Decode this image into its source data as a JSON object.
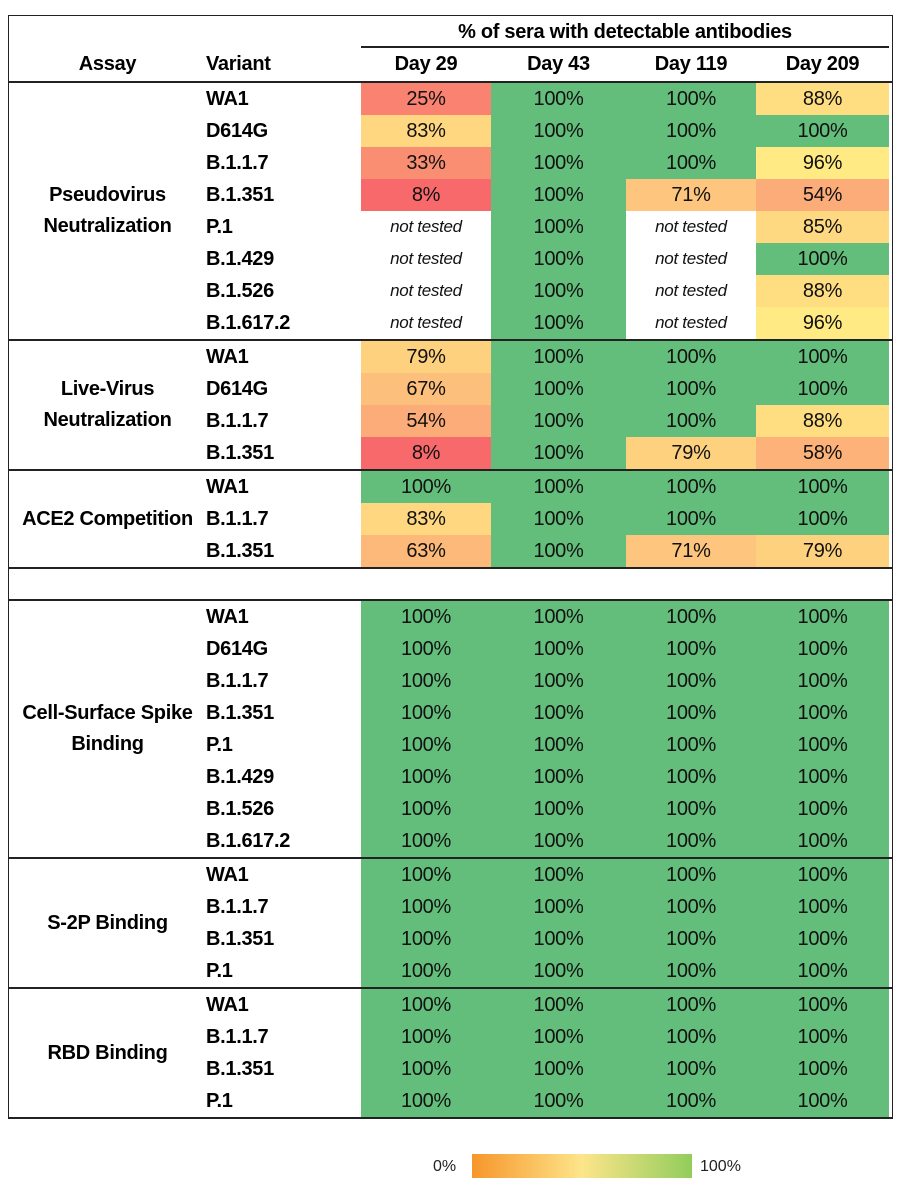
{
  "chart_data": {
    "type": "heatmap",
    "title": "% of sera with detectable antibodies",
    "columns": [
      "Assay",
      "Variant",
      "Day 29",
      "Day 43",
      "Day 119",
      "Day 209"
    ],
    "groups": [
      {
        "assay": "Pseudovirus Neutralization",
        "rows": [
          {
            "variant": "WA1",
            "values": [
              "25%",
              "100%",
              "100%",
              "88%"
            ]
          },
          {
            "variant": "D614G",
            "values": [
              "83%",
              "100%",
              "100%",
              "100%"
            ]
          },
          {
            "variant": "B.1.1.7",
            "values": [
              "33%",
              "100%",
              "100%",
              "96%"
            ]
          },
          {
            "variant": "B.1.351",
            "values": [
              "8%",
              "100%",
              "71%",
              "54%"
            ]
          },
          {
            "variant": "P.1",
            "values": [
              "not tested",
              "100%",
              "not tested",
              "85%"
            ]
          },
          {
            "variant": "B.1.429",
            "values": [
              "not tested",
              "100%",
              "not tested",
              "100%"
            ]
          },
          {
            "variant": "B.1.526",
            "values": [
              "not tested",
              "100%",
              "not tested",
              "88%"
            ]
          },
          {
            "variant": "B.1.617.2",
            "values": [
              "not tested",
              "100%",
              "not tested",
              "96%"
            ]
          }
        ]
      },
      {
        "assay": "Live-Virus Neutralization",
        "rows": [
          {
            "variant": "WA1",
            "values": [
              "79%",
              "100%",
              "100%",
              "100%"
            ]
          },
          {
            "variant": "D614G",
            "values": [
              "67%",
              "100%",
              "100%",
              "100%"
            ]
          },
          {
            "variant": "B.1.1.7",
            "values": [
              "54%",
              "100%",
              "100%",
              "88%"
            ]
          },
          {
            "variant": "B.1.351",
            "values": [
              "8%",
              "100%",
              "79%",
              "58%"
            ]
          }
        ]
      },
      {
        "assay": "ACE2 Competition",
        "rows": [
          {
            "variant": "WA1",
            "values": [
              "100%",
              "100%",
              "100%",
              "100%"
            ]
          },
          {
            "variant": "B.1.1.7",
            "values": [
              "83%",
              "100%",
              "100%",
              "100%"
            ]
          },
          {
            "variant": "B.1.351",
            "values": [
              "63%",
              "100%",
              "71%",
              "79%"
            ]
          }
        ]
      },
      {
        "assay": "",
        "rows": []
      },
      {
        "assay": "Cell-Surface Spike Binding",
        "rows": [
          {
            "variant": "WA1",
            "values": [
              "100%",
              "100%",
              "100%",
              "100%"
            ]
          },
          {
            "variant": "D614G",
            "values": [
              "100%",
              "100%",
              "100%",
              "100%"
            ]
          },
          {
            "variant": "B.1.1.7",
            "values": [
              "100%",
              "100%",
              "100%",
              "100%"
            ]
          },
          {
            "variant": "B.1.351",
            "values": [
              "100%",
              "100%",
              "100%",
              "100%"
            ]
          },
          {
            "variant": "P.1",
            "values": [
              "100%",
              "100%",
              "100%",
              "100%"
            ]
          },
          {
            "variant": "B.1.429",
            "values": [
              "100%",
              "100%",
              "100%",
              "100%"
            ]
          },
          {
            "variant": "B.1.526",
            "values": [
              "100%",
              "100%",
              "100%",
              "100%"
            ]
          },
          {
            "variant": "B.1.617.2",
            "values": [
              "100%",
              "100%",
              "100%",
              "100%"
            ]
          }
        ]
      },
      {
        "assay": "S-2P Binding",
        "rows": [
          {
            "variant": "WA1",
            "values": [
              "100%",
              "100%",
              "100%",
              "100%"
            ]
          },
          {
            "variant": "B.1.1.7",
            "values": [
              "100%",
              "100%",
              "100%",
              "100%"
            ]
          },
          {
            "variant": "B.1.351",
            "values": [
              "100%",
              "100%",
              "100%",
              "100%"
            ]
          },
          {
            "variant": "P.1",
            "values": [
              "100%",
              "100%",
              "100%",
              "100%"
            ]
          }
        ]
      },
      {
        "assay": "RBD Binding",
        "rows": [
          {
            "variant": "WA1",
            "values": [
              "100%",
              "100%",
              "100%",
              "100%"
            ]
          },
          {
            "variant": "B.1.1.7",
            "values": [
              "100%",
              "100%",
              "100%",
              "100%"
            ]
          },
          {
            "variant": "B.1.351",
            "values": [
              "100%",
              "100%",
              "100%",
              "100%"
            ]
          },
          {
            "variant": "P.1",
            "values": [
              "100%",
              "100%",
              "100%",
              "100%"
            ]
          }
        ]
      }
    ],
    "cell_colors": {
      "low": "#f8696b",
      "mid": "#ffeb84",
      "high": "#63be7b"
    },
    "legend": {
      "min_label": "0%",
      "max_label": "100%",
      "colors": [
        "#f7962b",
        "#fde58a",
        "#92cd5c"
      ]
    }
  }
}
